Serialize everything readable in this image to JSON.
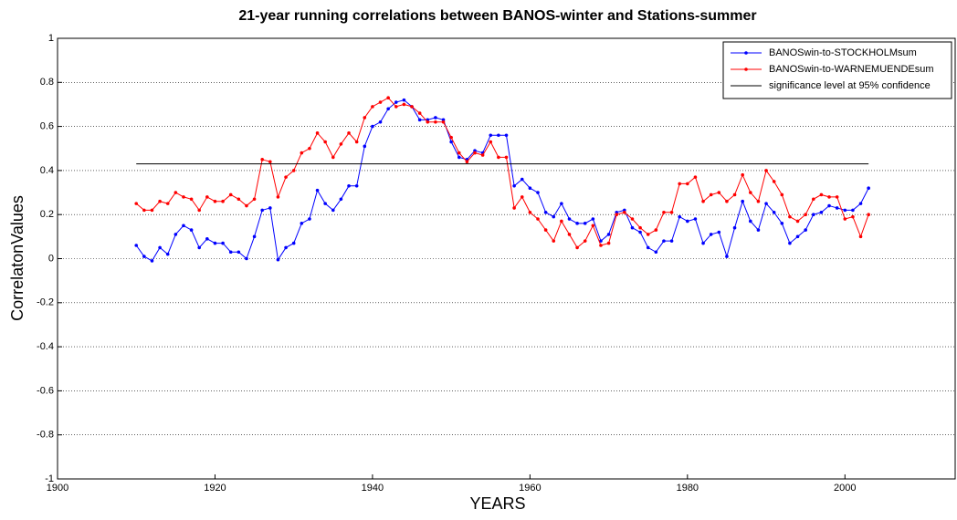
{
  "chart_data": {
    "type": "line",
    "title": "21-year running correlations between BANOS-winter and Stations-summer",
    "x_label": "YEARS",
    "y_label": "CorrelatonValues",
    "x": [
      1910,
      1911,
      1912,
      1913,
      1914,
      1915,
      1916,
      1917,
      1918,
      1919,
      1920,
      1921,
      1922,
      1923,
      1924,
      1925,
      1926,
      1927,
      1928,
      1929,
      1930,
      1931,
      1932,
      1933,
      1934,
      1935,
      1936,
      1937,
      1938,
      1939,
      1940,
      1941,
      1942,
      1943,
      1944,
      1945,
      1946,
      1947,
      1948,
      1949,
      1950,
      1951,
      1952,
      1953,
      1954,
      1955,
      1956,
      1957,
      1958,
      1959,
      1960,
      1961,
      1962,
      1963,
      1964,
      1965,
      1966,
      1967,
      1968,
      1969,
      1970,
      1971,
      1972,
      1973,
      1974,
      1975,
      1976,
      1977,
      1978,
      1979,
      1980,
      1981,
      1982,
      1983,
      1984,
      1985,
      1986,
      1987,
      1988,
      1989,
      1990,
      1991,
      1992,
      1993,
      1994,
      1995,
      1996,
      1997,
      1998,
      1999,
      2000,
      2001,
      2002,
      2003
    ],
    "series": [
      {
        "name": "BANOSwin-to-STOCKHOLMsum",
        "color": "#0000ff",
        "marker": true,
        "values": [
          0.06,
          0.01,
          -0.01,
          0.05,
          0.02,
          0.11,
          0.15,
          0.13,
          0.05,
          0.09,
          0.07,
          0.07,
          0.03,
          0.03,
          0.0,
          0.1,
          0.22,
          0.23,
          -0.005,
          0.05,
          0.07,
          0.16,
          0.18,
          0.31,
          0.25,
          0.22,
          0.27,
          0.33,
          0.33,
          0.51,
          0.6,
          0.62,
          0.68,
          0.71,
          0.72,
          0.69,
          0.63,
          0.63,
          0.64,
          0.63,
          0.53,
          0.46,
          0.45,
          0.49,
          0.48,
          0.56,
          0.56,
          0.56,
          0.33,
          0.36,
          0.32,
          0.3,
          0.21,
          0.19,
          0.25,
          0.18,
          0.16,
          0.16,
          0.18,
          0.08,
          0.11,
          0.21,
          0.22,
          0.14,
          0.12,
          0.05,
          0.03,
          0.08,
          0.08,
          0.19,
          0.17,
          0.18,
          0.07,
          0.11,
          0.12,
          0.01,
          0.14,
          0.26,
          0.17,
          0.13,
          0.25,
          0.21,
          0.16,
          0.07,
          0.1,
          0.13,
          0.2,
          0.21,
          0.24,
          0.23,
          0.22,
          0.22,
          0.25,
          0.32
        ]
      },
      {
        "name": "BANOSwin-to-WARNEMUENDEsum",
        "color": "#ff0000",
        "marker": true,
        "values": [
          0.25,
          0.22,
          0.22,
          0.26,
          0.25,
          0.3,
          0.28,
          0.27,
          0.22,
          0.28,
          0.26,
          0.26,
          0.29,
          0.27,
          0.24,
          0.27,
          0.45,
          0.44,
          0.28,
          0.37,
          0.4,
          0.48,
          0.5,
          0.57,
          0.53,
          0.46,
          0.52,
          0.57,
          0.53,
          0.64,
          0.69,
          0.71,
          0.73,
          0.69,
          0.7,
          0.69,
          0.66,
          0.62,
          0.62,
          0.62,
          0.55,
          0.48,
          0.44,
          0.48,
          0.47,
          0.53,
          0.46,
          0.46,
          0.23,
          0.28,
          0.21,
          0.18,
          0.13,
          0.08,
          0.17,
          0.11,
          0.05,
          0.08,
          0.15,
          0.06,
          0.07,
          0.2,
          0.21,
          0.18,
          0.14,
          0.11,
          0.13,
          0.21,
          0.21,
          0.34,
          0.34,
          0.37,
          0.26,
          0.29,
          0.3,
          0.26,
          0.29,
          0.38,
          0.3,
          0.26,
          0.4,
          0.35,
          0.29,
          0.19,
          0.17,
          0.2,
          0.27,
          0.29,
          0.28,
          0.28,
          0.18,
          0.19,
          0.1,
          0.2
        ]
      },
      {
        "name": "significance level at 95% confidence",
        "color": "#000000",
        "marker": false,
        "x": [
          1910,
          2003
        ],
        "values": [
          0.43,
          0.43
        ]
      }
    ],
    "xlim": [
      1900,
      2014
    ],
    "xticks": [
      1900,
      1920,
      1940,
      1960,
      1980,
      2000
    ],
    "ylim": [
      -1,
      1
    ],
    "yticks": [
      -1,
      -0.8,
      -0.6,
      -0.4,
      -0.2,
      0,
      0.2,
      0.4,
      0.6,
      0.8,
      1
    ],
    "grid": "y",
    "legend": "upper-right"
  }
}
